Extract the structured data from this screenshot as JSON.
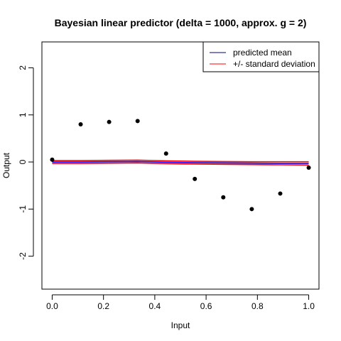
{
  "chart_data": {
    "type": "line",
    "title": "Bayesian linear predictor (delta = 1000, approx. g = 2)",
    "xlabel": "Input",
    "ylabel": "Output",
    "xlim": [
      -0.04,
      1.04
    ],
    "ylim": [
      -2.7,
      2.55
    ],
    "xticks": [
      "0.0",
      "0.2",
      "0.4",
      "0.6",
      "0.8",
      "1.0"
    ],
    "xtick_values": [
      0.0,
      0.2,
      0.4,
      0.6,
      0.8,
      1.0
    ],
    "yticks": [
      "-2",
      "-1",
      "0",
      "1",
      "2"
    ],
    "ytick_values": [
      -2,
      -1,
      0,
      1,
      2
    ],
    "grid": false,
    "legend_position": "top-right",
    "points": {
      "x": [
        0.0,
        0.111,
        0.222,
        0.333,
        0.444,
        0.556,
        0.667,
        0.778,
        0.889,
        1.0
      ],
      "y": [
        0.05,
        0.8,
        0.85,
        0.87,
        0.18,
        -0.36,
        -0.75,
        -1.0,
        -0.67,
        -0.12
      ],
      "color": "#000000"
    },
    "series": [
      {
        "name": "predicted mean",
        "color": "#0000ff",
        "x": [
          0.0,
          0.111,
          0.222,
          0.333,
          0.444,
          0.556,
          0.667,
          0.778,
          0.889,
          1.0
        ],
        "y": [
          0.0,
          0.0,
          0.005,
          0.01,
          -0.005,
          -0.015,
          -0.02,
          -0.025,
          -0.03,
          -0.03
        ]
      },
      {
        "name": "+/- standard deviation",
        "color": "#ff0000",
        "x": [
          0.0,
          0.111,
          0.222,
          0.333,
          0.444,
          0.556,
          0.667,
          0.778,
          0.889,
          1.0
        ],
        "y": [
          0.03,
          0.03,
          0.035,
          0.04,
          0.025,
          0.015,
          0.01,
          0.005,
          0.005,
          0.005
        ]
      },
      {
        "name": "",
        "color": "#ff0000",
        "x": [
          0.0,
          0.111,
          0.222,
          0.333,
          0.444,
          0.556,
          0.667,
          0.778,
          0.889,
          1.0
        ],
        "y": [
          -0.03,
          -0.03,
          -0.025,
          -0.02,
          -0.035,
          -0.045,
          -0.05,
          -0.055,
          -0.06,
          -0.065
        ]
      }
    ],
    "legend": [
      {
        "label": "predicted mean",
        "color": "#000080"
      },
      {
        "label": "+/- standard deviation",
        "color": "#ff0000"
      }
    ]
  }
}
